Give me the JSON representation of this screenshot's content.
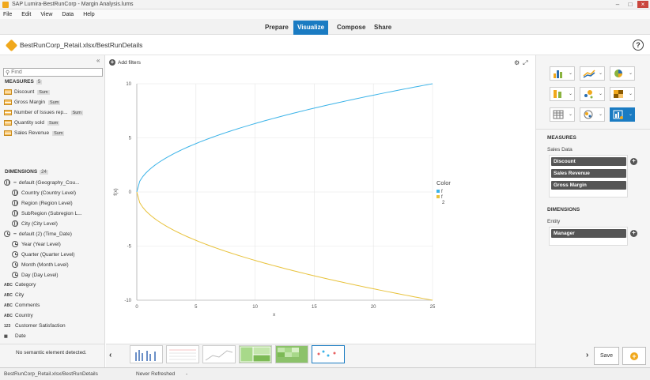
{
  "window": {
    "title": "SAP Lumira-BestRunCorp - Margin Analysis.lums"
  },
  "menu": [
    "File",
    "Edit",
    "View",
    "Data",
    "Help"
  ],
  "modes": [
    "Prepare",
    "Visualize",
    "Compose",
    "Share"
  ],
  "active_mode": "Visualize",
  "document": {
    "title": "BestRunCorp_Retail.xlsx/BestRunDetails"
  },
  "left": {
    "collapse_glyph": "«",
    "find_placeholder": "Find",
    "measures_heading": "MEASURES",
    "measures_count": "5",
    "measures": [
      {
        "label": "Discount",
        "agg": "Sum"
      },
      {
        "label": "Gross Margin",
        "agg": "Sum"
      },
      {
        "label": "Number of Issues rep...",
        "agg": "Sum"
      },
      {
        "label": "Quantity sold",
        "agg": "Sum"
      },
      {
        "label": "Sales Revenue",
        "agg": "Sum"
      }
    ],
    "dimensions_heading": "DIMENSIONS",
    "dimensions_count": "24",
    "hier_geo": "default (Geography_Cou...",
    "geo_levels": [
      "Country (Country Level)",
      "Region (Region Level)",
      "SubRegion (Subregion L...",
      "City (City Level)"
    ],
    "hier_time": "default (2) (Time_Date)",
    "time_levels": [
      "Year (Year Level)",
      "Quarter (Quarter Level)",
      "Month (Month Level)",
      "Day (Day Level)"
    ],
    "plain_dims": [
      {
        "type": "ABC",
        "label": "Category"
      },
      {
        "type": "ABC",
        "label": "City"
      },
      {
        "type": "ABC",
        "label": "Comments"
      },
      {
        "type": "ABC",
        "label": "Country"
      },
      {
        "type": "123",
        "label": "Customer Satisfaction"
      },
      {
        "type": "cal",
        "label": "Date"
      }
    ],
    "no_semantic": "No semantic element detected."
  },
  "chart_toolbar": {
    "add_filters": "Add filters"
  },
  "chart_data": {
    "type": "line",
    "xlabel": "x",
    "ylabel": "f(x)",
    "xlim": [
      0,
      25
    ],
    "ylim": [
      -10,
      10
    ],
    "x_ticks": [
      "0",
      "5",
      "10",
      "15",
      "20",
      "25"
    ],
    "y_ticks": [
      "10",
      "5",
      "0",
      "-5",
      "-10"
    ],
    "legend_title": "Color",
    "legend_position": "right",
    "series": [
      {
        "name": "f",
        "color": "#3bb3e8",
        "x": [
          0,
          0.25,
          1,
          2,
          4,
          6.25,
          9,
          12.25,
          16,
          20.25,
          25
        ],
        "y": [
          0,
          1,
          2,
          2.83,
          4,
          5,
          6,
          7,
          8,
          9,
          10
        ]
      },
      {
        "name": "f",
        "color": "#e8c23b",
        "x": [
          0,
          0.25,
          1,
          2,
          4,
          6.25,
          9,
          12.25,
          16,
          20.25,
          25
        ],
        "y": [
          0,
          -1,
          -2,
          -2.83,
          -4,
          -5,
          -6,
          -7,
          -8,
          -9,
          -10
        ]
      }
    ],
    "legend_extra": "2",
    "grid": true
  },
  "right": {
    "measures_heading": "MEASURES",
    "group_label": "Sales Data",
    "measures": [
      "Discount",
      "Sales Revenue",
      "Gross Margin"
    ],
    "dimensions_heading": "DIMENSIONS",
    "entity_label": "Entity",
    "dimensions": [
      "Manager"
    ]
  },
  "footer": {
    "save": "Save",
    "status_file": "BestRunCorp_Retail.xlsx/BestRunDetails",
    "status_refresh": "Never Refreshed",
    "status_dash": "-"
  },
  "colors": {
    "accent": "#1a7bc2",
    "brand": "#f0a81c"
  }
}
